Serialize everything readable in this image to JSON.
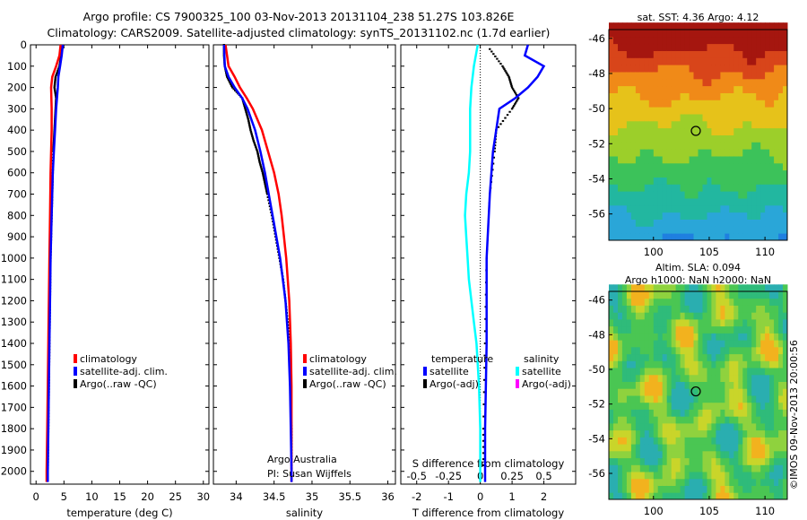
{
  "titles": {
    "line1": "Argo profile: CS 7900325_100 03-Nov-2013 20131104_238 51.27S 103.826E",
    "line2": "Climatology: CARS2009. Satellite-adjusted climatology: synTS_20131102.nc (1.7d earlier)"
  },
  "credit": {
    "line1": "Argo Australia",
    "line2": "PI: Susan Wijffels"
  },
  "stamp": "©IMOS 09-Nov-2013 20:00:56",
  "colors": {
    "climatology": "#ff0000",
    "satellite": "#0000ff",
    "argo": "#000000",
    "sal_satellite": "#00ffff",
    "sal_argo": "#ff00ff"
  },
  "chart_data": [
    {
      "type": "line",
      "xlabel": "temperature (deg C)",
      "ylabel": "",
      "xlim": [
        -1,
        31
      ],
      "ylim": [
        2060,
        0
      ],
      "xticks": [
        0,
        5,
        10,
        15,
        20,
        25,
        30
      ],
      "yticks": [
        0,
        100,
        200,
        300,
        400,
        500,
        600,
        700,
        800,
        900,
        1000,
        1100,
        1200,
        1300,
        1400,
        1500,
        1600,
        1700,
        1800,
        1900,
        2000
      ],
      "legend": [
        "climatology",
        "satellite-adj. clim.",
        "Argo(..raw -QC)"
      ],
      "legend_placement": "lower-right",
      "grid": false,
      "series": [
        {
          "name": "climatology",
          "color": "#ff0000",
          "depth": [
            0,
            50,
            100,
            150,
            200,
            300,
            400,
            500,
            600,
            800,
            1000,
            1200,
            1400,
            1600,
            1800,
            2000,
            2050
          ],
          "values": [
            4.4,
            4.2,
            3.6,
            2.9,
            2.7,
            2.8,
            2.8,
            2.7,
            2.6,
            2.5,
            2.4,
            2.3,
            2.2,
            2.1,
            2.0,
            1.9,
            1.9
          ]
        },
        {
          "name": "satellite-adj. clim.",
          "color": "#0000ff",
          "depth": [
            0,
            50,
            100,
            150,
            200,
            300,
            400,
            500,
            600,
            800,
            1000,
            1200,
            1400,
            1600,
            1800,
            2000,
            2050
          ],
          "values": [
            4.8,
            4.6,
            4.3,
            4.0,
            3.9,
            3.6,
            3.4,
            3.2,
            3.0,
            2.8,
            2.6,
            2.5,
            2.4,
            2.3,
            2.2,
            2.1,
            2.1
          ]
        },
        {
          "name": "Argo(..raw -QC)",
          "color": "#000000",
          "depth": [
            10,
            50,
            100,
            150,
            200,
            250,
            300,
            350,
            400,
            450,
            500,
            600,
            700,
            800,
            900,
            1000,
            1100,
            1200,
            1300,
            1400,
            1500,
            1600,
            1700,
            1800,
            1900,
            2000
          ],
          "values": [
            4.7,
            4.5,
            4.2,
            3.5,
            3.3,
            3.6,
            3.5,
            3.4,
            3.3,
            3.2,
            3.1,
            3.0,
            2.9,
            2.8,
            2.7,
            2.6,
            2.55,
            2.5,
            2.45,
            2.4,
            2.35,
            2.3,
            2.25,
            2.2,
            2.15,
            2.1
          ]
        }
      ]
    },
    {
      "type": "line",
      "xlabel": "salinity",
      "ylabel": "",
      "xlim": [
        33.7,
        36.1
      ],
      "ylim": [
        2060,
        0
      ],
      "xticks": [
        34,
        34.5,
        35,
        35.5,
        36
      ],
      "legend": [
        "climatology",
        "satellite-adj. clim.",
        "Argo(..raw -QC)"
      ],
      "legend_placement": "lower-right",
      "grid": false,
      "series": [
        {
          "name": "climatology",
          "color": "#ff0000",
          "depth": [
            0,
            100,
            150,
            200,
            250,
            300,
            400,
            500,
            600,
            700,
            800,
            900,
            1000,
            1200,
            1400,
            1600,
            1800,
            2000,
            2050
          ],
          "values": [
            33.86,
            33.9,
            33.98,
            34.05,
            34.14,
            34.22,
            34.34,
            34.42,
            34.5,
            34.56,
            34.6,
            34.63,
            34.66,
            34.7,
            34.72,
            34.73,
            34.73,
            34.73,
            34.73
          ]
        },
        {
          "name": "satellite-adj. clim.",
          "color": "#0000ff",
          "depth": [
            0,
            100,
            150,
            200,
            250,
            300,
            400,
            500,
            600,
            700,
            800,
            900,
            1000,
            1200,
            1400,
            1600,
            1800,
            2000,
            2050
          ],
          "values": [
            33.84,
            33.85,
            33.9,
            33.98,
            34.08,
            34.15,
            34.25,
            34.32,
            34.38,
            34.43,
            34.48,
            34.53,
            34.58,
            34.65,
            34.69,
            34.71,
            34.72,
            34.73,
            34.73
          ]
        },
        {
          "name": "Argo(..raw -QC)",
          "color": "#000000",
          "depth": [
            0,
            50,
            100,
            150,
            200,
            250,
            300,
            350,
            400,
            450,
            500,
            550,
            600,
            650,
            700,
            800,
            900,
            1000,
            1100,
            1200,
            1300,
            1400,
            1500,
            1600,
            1700,
            1800,
            1900,
            2000
          ],
          "values": [
            33.84,
            33.84,
            33.85,
            33.88,
            33.95,
            34.08,
            34.12,
            34.16,
            34.19,
            34.23,
            34.28,
            34.31,
            34.35,
            34.38,
            34.41,
            34.47,
            34.52,
            34.57,
            34.62,
            34.65,
            34.68,
            34.7,
            34.71,
            34.72,
            34.72,
            34.73,
            34.73,
            34.73
          ]
        }
      ]
    },
    {
      "type": "line",
      "xlabel": "T difference from climatology",
      "x2label": "S difference from climatology",
      "ylabel": "",
      "xlim": [
        -2.5,
        3.0
      ],
      "x2lim": [
        -0.625,
        0.75
      ],
      "ylim": [
        2060,
        0
      ],
      "xticks": [
        -2,
        -1,
        0,
        1,
        2
      ],
      "x2ticks": [
        -0.5,
        -0.25,
        0,
        0.25,
        0.5
      ],
      "x2ticklabels": [
        "-0.5",
        "-0.25",
        "0",
        "0.25",
        "0.5"
      ],
      "legend_temperature_title": "temperature",
      "legend_salinity_title": "salinity",
      "legend": [
        "satellite",
        "Argo(-adj)",
        "satellite",
        "Argo(-adj)"
      ],
      "legend_placement": "lower-center",
      "grid": false,
      "series": [
        {
          "name": "satellite",
          "axis": "temperature",
          "color": "#0000ff",
          "depth": [
            0,
            50,
            100,
            150,
            200,
            250,
            300,
            400,
            500,
            700,
            1000,
            1400,
            1800,
            2050
          ],
          "values": [
            1.5,
            1.4,
            2.0,
            1.8,
            1.5,
            1.1,
            0.6,
            0.5,
            0.4,
            0.3,
            0.2,
            0.2,
            0.15,
            0.15
          ]
        },
        {
          "name": "Argo(-adj)",
          "axis": "temperature",
          "color": "#000000",
          "depth": [
            20,
            100,
            150,
            200,
            250,
            300,
            400,
            500,
            700,
            1000,
            1400,
            1800,
            2000
          ],
          "values": [
            0.3,
            0.7,
            0.9,
            1.0,
            1.2,
            1.0,
            0.5,
            0.45,
            0.3,
            0.2,
            0.15,
            0.1,
            0.1
          ]
        },
        {
          "name": "satellite",
          "axis": "salinity",
          "color": "#00ffff",
          "depth": [
            0,
            100,
            200,
            300,
            400,
            500,
            600,
            700,
            800,
            900,
            1000,
            1100,
            1200,
            1300,
            1400,
            1600,
            1800,
            2050
          ],
          "values": [
            -0.02,
            -0.05,
            -0.07,
            -0.08,
            -0.08,
            -0.08,
            -0.09,
            -0.11,
            -0.12,
            -0.11,
            -0.1,
            -0.09,
            -0.07,
            -0.05,
            -0.03,
            -0.01,
            0,
            0
          ]
        },
        {
          "name": "Argo(-adj)",
          "axis": "salinity",
          "color": "#ff00ff",
          "depth": [],
          "values": []
        }
      ]
    },
    {
      "type": "heatmap",
      "title": "sat. SST: 4.36 Argo: 4.12",
      "xlim": [
        96,
        112
      ],
      "ylim": [
        -57.5,
        -45.5
      ],
      "xticks": [
        100,
        105,
        110
      ],
      "yticks": [
        -46,
        -48,
        -50,
        -52,
        -54,
        -56
      ],
      "marker": {
        "lon": 103.8,
        "lat": -51.27
      }
    },
    {
      "type": "heatmap",
      "title": "Altim. SLA: 0.094",
      "subtitle": "Argo h1000: NaN h2000: NaN",
      "xlim": [
        96,
        112
      ],
      "ylim": [
        -57.5,
        -45.5
      ],
      "xticks": [
        100,
        105,
        110
      ],
      "yticks": [
        -46,
        -48,
        -50,
        -52,
        -54,
        -56
      ],
      "marker": {
        "lon": 103.8,
        "lat": -51.27
      }
    }
  ]
}
